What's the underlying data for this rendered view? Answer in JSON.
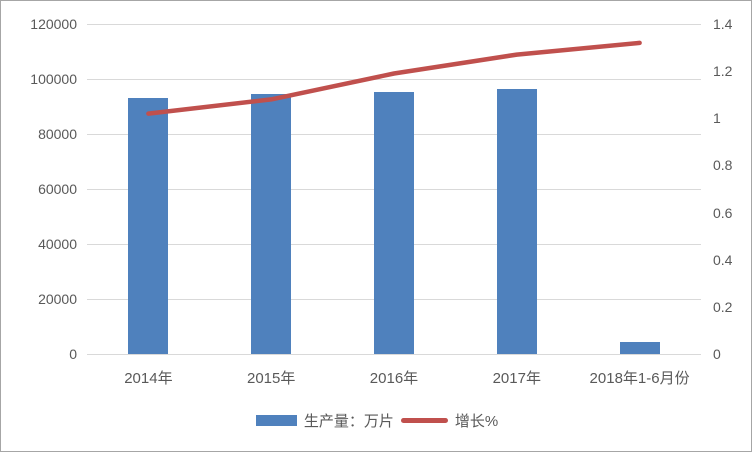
{
  "chart_data": {
    "type": "combo",
    "title": "",
    "categories": [
      "2014年",
      "2015年",
      "2016年",
      "2017年",
      "2018年1-6月份"
    ],
    "series": [
      {
        "name": "生产量：万片",
        "type": "bar",
        "axis": "left",
        "color": "#4F81BD",
        "values": [
          93000,
          94500,
          95400,
          96400,
          4500
        ]
      },
      {
        "name": "增长%",
        "type": "line",
        "axis": "right",
        "color": "#C0504D",
        "values": [
          1.02,
          1.08,
          1.19,
          1.27,
          1.32
        ]
      }
    ],
    "left_axis": {
      "min": 0,
      "max": 120000,
      "step": 20000,
      "tick_labels": [
        "120000",
        "100000",
        "80000",
        "60000",
        "40000",
        "20000",
        "0"
      ]
    },
    "right_axis": {
      "min": 0,
      "max": 1.4,
      "step": 0.2,
      "tick_labels": [
        "1.4",
        "1.2",
        "1",
        "0.8",
        "0.6",
        "0.4",
        "0.2",
        "0"
      ]
    },
    "grid": true,
    "legend_position": "bottom",
    "colors": {
      "bar_fill": "#4F81BD",
      "line_stroke": "#C0504D",
      "gridline": "#d9d9d9",
      "axis_text": "#595959",
      "background": "#ffffff",
      "border": "#a6a6a6"
    }
  }
}
